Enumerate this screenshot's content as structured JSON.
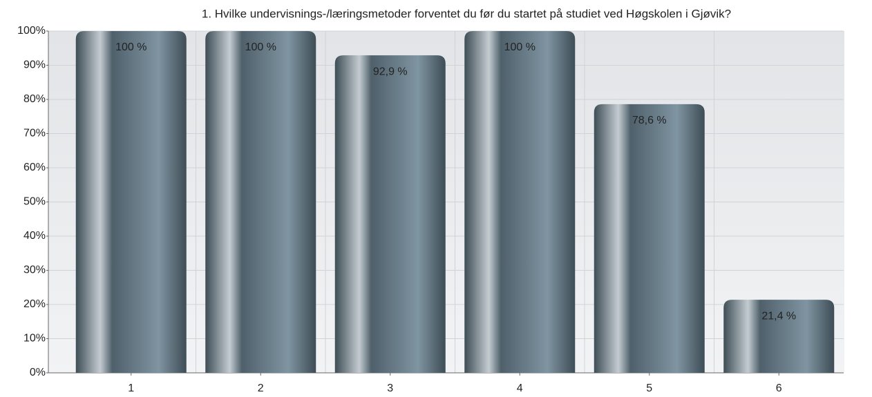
{
  "chart_data": {
    "type": "bar",
    "title": "1. Hvilke undervisnings-/læringsmetoder forventet du før du startet på studiet ved Høgskolen i Gjøvik?",
    "categories": [
      "1",
      "2",
      "3",
      "4",
      "5",
      "6"
    ],
    "values": [
      100,
      100,
      92.9,
      100,
      78.6,
      21.4
    ],
    "value_labels": [
      "100 %",
      "100 %",
      "92,9 %",
      "100 %",
      "78,6 %",
      "21,4 %"
    ],
    "color": "#7f95a1",
    "ylim": [
      0,
      100
    ],
    "yticks": [
      {
        "value": 0,
        "label": "0%"
      },
      {
        "value": 10,
        "label": "10%"
      },
      {
        "value": 20,
        "label": "20%"
      },
      {
        "value": 30,
        "label": "30%"
      },
      {
        "value": 40,
        "label": "40%"
      },
      {
        "value": 50,
        "label": "50%"
      },
      {
        "value": 60,
        "label": "60%"
      },
      {
        "value": 70,
        "label": "70%"
      },
      {
        "value": 80,
        "label": "80%"
      },
      {
        "value": 90,
        "label": "90%"
      },
      {
        "value": 100,
        "label": "100%"
      }
    ],
    "grid": true
  }
}
